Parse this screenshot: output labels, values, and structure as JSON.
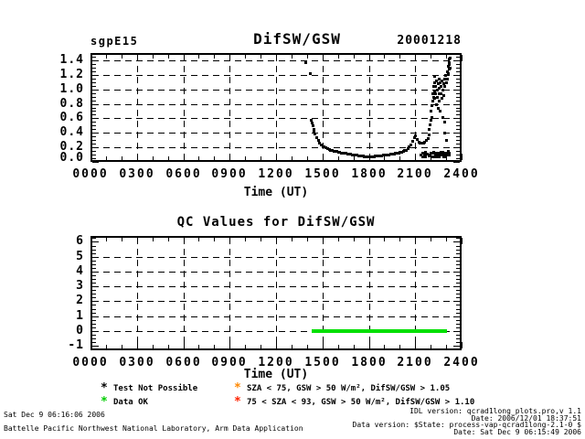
{
  "header": {
    "site": "sgpE15",
    "title": "DifSW/GSW",
    "date": "20001218"
  },
  "chart_data": [
    {
      "type": "scatter",
      "title": "DifSW/GSW",
      "xlabel": "Time (UT)",
      "xlim": [
        0,
        24
      ],
      "ylim": [
        0,
        1.5
      ],
      "x_ticks": [
        {
          "v": 0,
          "l": "0000"
        },
        {
          "v": 3,
          "l": "0300"
        },
        {
          "v": 6,
          "l": "0600"
        },
        {
          "v": 9,
          "l": "0900"
        },
        {
          "v": 12,
          "l": "1200"
        },
        {
          "v": 15,
          "l": "1500"
        },
        {
          "v": 18,
          "l": "1800"
        },
        {
          "v": 21,
          "l": "2100"
        },
        {
          "v": 24,
          "l": "2400"
        }
      ],
      "x_minor_step": 1,
      "x_grid": [
        3,
        6,
        9,
        12,
        15,
        18,
        21
      ],
      "y_ticks": [
        {
          "v": 0.0,
          "l": "0.0"
        },
        {
          "v": 0.2,
          "l": "0.2"
        },
        {
          "v": 0.4,
          "l": "0.4"
        },
        {
          "v": 0.6,
          "l": "0.6"
        },
        {
          "v": 0.8,
          "l": "0.8"
        },
        {
          "v": 1.0,
          "l": "1.0"
        },
        {
          "v": 1.2,
          "l": "1.2"
        },
        {
          "v": 1.4,
          "l": "1.4"
        }
      ],
      "y_minor_step": 0.05,
      "y_grid": [
        0.2,
        0.4,
        0.6,
        0.8,
        1.0,
        1.2,
        1.4
      ],
      "marker_color": "#000000",
      "points": [
        [
          13.9,
          1.37
        ],
        [
          14.2,
          1.22
        ],
        [
          14.25,
          0.58
        ],
        [
          14.3,
          0.54
        ],
        [
          14.35,
          0.5
        ],
        [
          14.4,
          0.46
        ],
        [
          14.45,
          0.42
        ],
        [
          14.5,
          0.39
        ],
        [
          14.6,
          0.34
        ],
        [
          14.7,
          0.3
        ],
        [
          14.8,
          0.27
        ],
        [
          14.9,
          0.24
        ],
        [
          15.0,
          0.22
        ],
        [
          15.1,
          0.21
        ],
        [
          15.2,
          0.2
        ],
        [
          15.3,
          0.19
        ],
        [
          15.4,
          0.18
        ],
        [
          15.5,
          0.17
        ],
        [
          15.6,
          0.16
        ],
        [
          15.7,
          0.155
        ],
        [
          15.8,
          0.15
        ],
        [
          15.9,
          0.145
        ],
        [
          16.0,
          0.14
        ],
        [
          16.1,
          0.135
        ],
        [
          16.2,
          0.13
        ],
        [
          16.3,
          0.125
        ],
        [
          16.4,
          0.12
        ],
        [
          16.5,
          0.12
        ],
        [
          16.6,
          0.115
        ],
        [
          16.7,
          0.11
        ],
        [
          16.8,
          0.11
        ],
        [
          16.9,
          0.105
        ],
        [
          17.0,
          0.1
        ],
        [
          17.1,
          0.1
        ],
        [
          17.2,
          0.095
        ],
        [
          17.3,
          0.09
        ],
        [
          17.4,
          0.09
        ],
        [
          17.5,
          0.085
        ],
        [
          17.6,
          0.085
        ],
        [
          17.7,
          0.08
        ],
        [
          17.8,
          0.08
        ],
        [
          17.9,
          0.08
        ],
        [
          18.0,
          0.08
        ],
        [
          18.1,
          0.08
        ],
        [
          18.2,
          0.08
        ],
        [
          18.3,
          0.08
        ],
        [
          18.4,
          0.085
        ],
        [
          18.5,
          0.085
        ],
        [
          18.6,
          0.09
        ],
        [
          18.7,
          0.09
        ],
        [
          18.8,
          0.09
        ],
        [
          18.9,
          0.095
        ],
        [
          19.0,
          0.095
        ],
        [
          19.1,
          0.1
        ],
        [
          19.2,
          0.1
        ],
        [
          19.3,
          0.105
        ],
        [
          19.4,
          0.11
        ],
        [
          19.5,
          0.11
        ],
        [
          19.6,
          0.115
        ],
        [
          19.7,
          0.12
        ],
        [
          19.8,
          0.125
        ],
        [
          19.9,
          0.13
        ],
        [
          20.0,
          0.135
        ],
        [
          20.1,
          0.14
        ],
        [
          20.2,
          0.15
        ],
        [
          20.3,
          0.16
        ],
        [
          20.4,
          0.17
        ],
        [
          20.5,
          0.19
        ],
        [
          20.6,
          0.21
        ],
        [
          20.7,
          0.24
        ],
        [
          20.8,
          0.29
        ],
        [
          20.9,
          0.34
        ],
        [
          21.0,
          0.36
        ],
        [
          21.1,
          0.32
        ],
        [
          21.2,
          0.28
        ],
        [
          21.3,
          0.26
        ],
        [
          21.4,
          0.26
        ],
        [
          21.5,
          0.27
        ],
        [
          21.6,
          0.28
        ],
        [
          21.7,
          0.3
        ],
        [
          21.8,
          0.33
        ],
        [
          21.85,
          0.38
        ],
        [
          21.9,
          0.45
        ],
        [
          21.95,
          0.52
        ],
        [
          22.0,
          0.58
        ],
        [
          22.0,
          0.7
        ],
        [
          22.05,
          0.78
        ],
        [
          22.05,
          0.62
        ],
        [
          22.1,
          0.85
        ],
        [
          22.1,
          0.95
        ],
        [
          22.15,
          1.05
        ],
        [
          22.15,
          0.9
        ],
        [
          22.2,
          1.1
        ],
        [
          22.2,
          0.98
        ],
        [
          22.25,
          1.18
        ],
        [
          22.25,
          0.88
        ],
        [
          22.3,
          1.05
        ],
        [
          22.3,
          0.95
        ],
        [
          22.35,
          1.12
        ],
        [
          22.35,
          0.8
        ],
        [
          22.4,
          1.0
        ],
        [
          22.4,
          0.9
        ],
        [
          22.45,
          1.08
        ],
        [
          22.45,
          0.75
        ],
        [
          22.5,
          0.95
        ],
        [
          22.5,
          1.15
        ],
        [
          22.55,
          1.02
        ],
        [
          22.55,
          0.85
        ],
        [
          22.6,
          1.1
        ],
        [
          22.6,
          0.7
        ],
        [
          22.65,
          0.95
        ],
        [
          22.65,
          1.05
        ],
        [
          22.7,
          0.88
        ],
        [
          22.7,
          1.12
        ],
        [
          22.75,
          1.0
        ],
        [
          22.75,
          0.62
        ],
        [
          22.8,
          1.08
        ],
        [
          22.8,
          0.92
        ],
        [
          22.85,
          1.15
        ],
        [
          22.85,
          0.55
        ],
        [
          22.9,
          1.05
        ],
        [
          22.9,
          0.4
        ],
        [
          22.95,
          1.2
        ],
        [
          23.0,
          1.1
        ],
        [
          23.0,
          0.3
        ],
        [
          23.05,
          1.25
        ],
        [
          23.05,
          1.15
        ],
        [
          23.1,
          1.32
        ],
        [
          23.1,
          1.22
        ],
        [
          23.15,
          1.38
        ],
        [
          23.15,
          1.28
        ],
        [
          23.2,
          1.42
        ],
        [
          23.2,
          1.35
        ],
        [
          23.25,
          1.3
        ],
        [
          23.25,
          1.44
        ],
        [
          21.35,
          0.1
        ],
        [
          21.45,
          0.08
        ],
        [
          21.45,
          0.13
        ],
        [
          21.55,
          0.1
        ],
        [
          21.65,
          0.08
        ],
        [
          21.65,
          0.14
        ],
        [
          21.75,
          0.11
        ],
        [
          21.85,
          0.09
        ],
        [
          21.95,
          0.1
        ],
        [
          22.0,
          0.12
        ],
        [
          22.05,
          0.08
        ],
        [
          22.1,
          0.12
        ],
        [
          22.15,
          0.14
        ],
        [
          22.2,
          0.08
        ],
        [
          22.25,
          0.12
        ],
        [
          22.3,
          0.1
        ],
        [
          22.35,
          0.07
        ],
        [
          22.4,
          0.12
        ],
        [
          22.45,
          0.09
        ],
        [
          22.5,
          0.13
        ],
        [
          22.55,
          0.08
        ],
        [
          22.6,
          0.11
        ],
        [
          22.65,
          0.14
        ],
        [
          22.7,
          0.1
        ],
        [
          22.75,
          0.14
        ],
        [
          22.8,
          0.08
        ],
        [
          22.85,
          0.12
        ],
        [
          22.9,
          0.1
        ],
        [
          22.95,
          0.08
        ],
        [
          23.0,
          0.13
        ],
        [
          23.05,
          0.1
        ],
        [
          23.1,
          0.15
        ],
        [
          23.15,
          0.12
        ],
        [
          23.2,
          0.1
        ]
      ]
    },
    {
      "type": "line",
      "title": "QC Values for DifSW/GSW",
      "xlabel": "Time (UT)",
      "xlim": [
        0,
        24
      ],
      "ylim": [
        -1.3,
        6.4
      ],
      "x_ticks": [
        {
          "v": 0,
          "l": "0000"
        },
        {
          "v": 3,
          "l": "0300"
        },
        {
          "v": 6,
          "l": "0600"
        },
        {
          "v": 9,
          "l": "0900"
        },
        {
          "v": 12,
          "l": "1200"
        },
        {
          "v": 15,
          "l": "1500"
        },
        {
          "v": 18,
          "l": "1800"
        },
        {
          "v": 21,
          "l": "2100"
        },
        {
          "v": 24,
          "l": "2400"
        }
      ],
      "x_minor_step": 1,
      "x_grid": [
        3,
        6,
        9,
        12,
        15,
        18,
        21
      ],
      "y_ticks": [
        {
          "v": -1,
          "l": "-1"
        },
        {
          "v": 0,
          "l": "0"
        },
        {
          "v": 1,
          "l": "1"
        },
        {
          "v": 2,
          "l": "2"
        },
        {
          "v": 3,
          "l": "3"
        },
        {
          "v": 4,
          "l": "4"
        },
        {
          "v": 5,
          "l": "5"
        },
        {
          "v": 6,
          "l": "6"
        }
      ],
      "y_minor_step": 0.25,
      "y_grid": [
        0,
        1,
        2,
        3,
        4,
        5
      ],
      "series": [
        {
          "name": "Data OK",
          "color": "#00e000",
          "y": 0,
          "x_start": 14.3,
          "x_end": 23.05
        }
      ]
    }
  ],
  "legend": {
    "items": [
      {
        "marker": "*",
        "color": "#000000",
        "label": "Test Not Possible"
      },
      {
        "marker": "*",
        "color": "#00cc00",
        "label": "Data OK"
      },
      {
        "marker": "*",
        "color": "#ff8800",
        "label": "SZA < 75, GSW > 50 W/m², DifSW/GSW > 1.05"
      },
      {
        "marker": "*",
        "color": "#ff2200",
        "label": "75 < SZA < 93, GSW > 50 W/m², DifSW/GSW > 1.10"
      }
    ]
  },
  "footer": {
    "generated": "Sat Dec  9 06:16:06 2006",
    "organization": "Battelle Pacific Northwest National Laboratory, Arm Data Application",
    "version_lines": [
      "IDL version: qcrad1long_plots.pro,v 1.1",
      "Date: 2006/12/01 18:37:51",
      "Data version: $State: process-vap-qcrad1long-2.1-0 $",
      "Date: Sat Dec  9 06:15:49 2006"
    ]
  }
}
